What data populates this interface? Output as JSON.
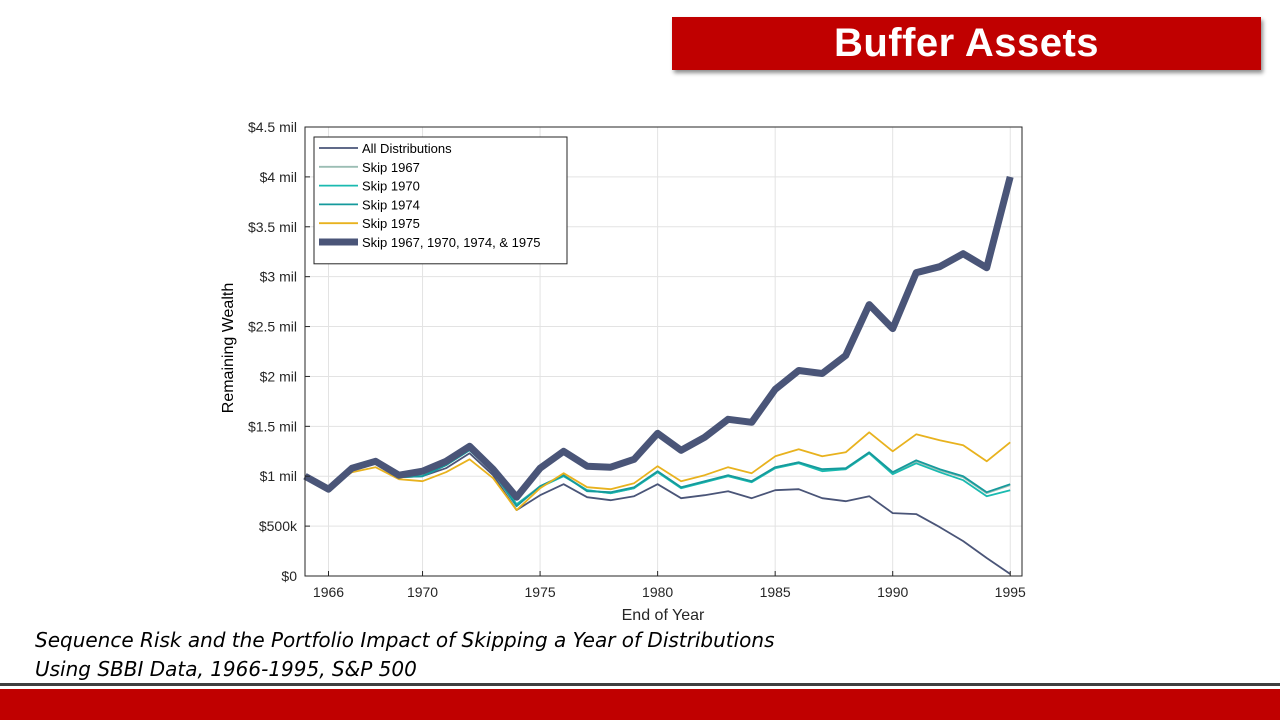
{
  "slide": {
    "title": "Buffer Assets",
    "caption_line1": "Sequence Risk and the Portfolio Impact of Skipping a Year of Distributions",
    "caption_line2": "Using SBBI Data, 1966-1995, S&P 500"
  },
  "colors": {
    "banner": "#c00000",
    "footer": "#c00000"
  },
  "chart_data": {
    "type": "line",
    "xlabel": "End of Year",
    "ylabel": "Remaining Wealth",
    "xlim": [
      1965,
      1995.5
    ],
    "ylim": [
      0,
      4500000
    ],
    "xticks": [
      1966,
      1970,
      1975,
      1980,
      1985,
      1990,
      1995
    ],
    "xtick_labels": [
      "1966",
      "1970",
      "1975",
      "1980",
      "1985",
      "1990",
      "1995"
    ],
    "yticks": [
      0,
      500000,
      1000000,
      1500000,
      2000000,
      2500000,
      3000000,
      3500000,
      4000000,
      4500000
    ],
    "ytick_labels": [
      "$0",
      "$500k",
      "$1 mil",
      "$1.5 mil",
      "$2 mil",
      "$2.5 mil",
      "$3 mil",
      "$3.5 mil",
      "$4 mil",
      "$4.5 mil"
    ],
    "grid": true,
    "legend_position": "top-left",
    "x": [
      1965,
      1966,
      1967,
      1968,
      1969,
      1970,
      1971,
      1972,
      1973,
      1974,
      1975,
      1976,
      1977,
      1978,
      1979,
      1980,
      1981,
      1982,
      1983,
      1984,
      1985,
      1986,
      1987,
      1988,
      1989,
      1990,
      1991,
      1992,
      1993,
      1994,
      1995
    ],
    "series": [
      {
        "name": "All Distributions",
        "color": "#4a5578",
        "width": 1.8,
        "values": [
          1000000,
          870000,
          1070000,
          1130000,
          990000,
          1000000,
          1080000,
          1230000,
          1010000,
          660000,
          810000,
          920000,
          790000,
          760000,
          800000,
          920000,
          780000,
          810000,
          850000,
          780000,
          860000,
          870000,
          780000,
          750000,
          800000,
          630000,
          620000,
          490000,
          350000,
          180000,
          20000
        ]
      },
      {
        "name": "Skip 1967",
        "color": "#9bbdb4",
        "width": 1.8,
        "values": [
          1000000,
          870000,
          1070000,
          1140000,
          1000000,
          1010000,
          1110000,
          1270000,
          1040000,
          720000,
          900000,
          1010000,
          860000,
          830000,
          880000,
          1050000,
          890000,
          940000,
          1010000,
          950000,
          1090000,
          1140000,
          1060000,
          1070000,
          1230000,
          1030000,
          1150000,
          1060000,
          990000,
          830000,
          910000
        ]
      },
      {
        "name": "Skip 1970",
        "color": "#1abab0",
        "width": 1.8,
        "values": [
          1000000,
          870000,
          1070000,
          1130000,
          990000,
          1000000,
          1110000,
          1270000,
          1040000,
          720000,
          890000,
          1000000,
          860000,
          830000,
          880000,
          1040000,
          880000,
          940000,
          1000000,
          940000,
          1080000,
          1130000,
          1050000,
          1070000,
          1230000,
          1020000,
          1130000,
          1040000,
          960000,
          800000,
          860000
        ]
      },
      {
        "name": "Skip 1974",
        "color": "#159a9c",
        "width": 1.8,
        "values": [
          1000000,
          870000,
          1070000,
          1130000,
          990000,
          1000000,
          1110000,
          1260000,
          1040000,
          700000,
          900000,
          1010000,
          850000,
          840000,
          890000,
          1050000,
          890000,
          950000,
          1010000,
          950000,
          1090000,
          1140000,
          1070000,
          1080000,
          1240000,
          1040000,
          1160000,
          1070000,
          1000000,
          840000,
          920000
        ]
      },
      {
        "name": "Skip 1975",
        "color": "#e8b21e",
        "width": 1.8,
        "values": [
          1000000,
          870000,
          1040000,
          1090000,
          970000,
          950000,
          1040000,
          1170000,
          980000,
          660000,
          880000,
          1030000,
          890000,
          870000,
          930000,
          1100000,
          950000,
          1010000,
          1090000,
          1030000,
          1200000,
          1270000,
          1200000,
          1240000,
          1440000,
          1250000,
          1420000,
          1360000,
          1310000,
          1150000,
          1340000
        ]
      },
      {
        "name": "Skip 1967, 1970, 1974, & 1975",
        "color": "#4a5578",
        "width": 7,
        "values": [
          1000000,
          870000,
          1080000,
          1150000,
          1010000,
          1050000,
          1150000,
          1300000,
          1070000,
          790000,
          1080000,
          1250000,
          1100000,
          1090000,
          1170000,
          1430000,
          1260000,
          1390000,
          1570000,
          1540000,
          1870000,
          2060000,
          2030000,
          2210000,
          2720000,
          2480000,
          3040000,
          3100000,
          3230000,
          3090000,
          4000000
        ]
      }
    ]
  }
}
